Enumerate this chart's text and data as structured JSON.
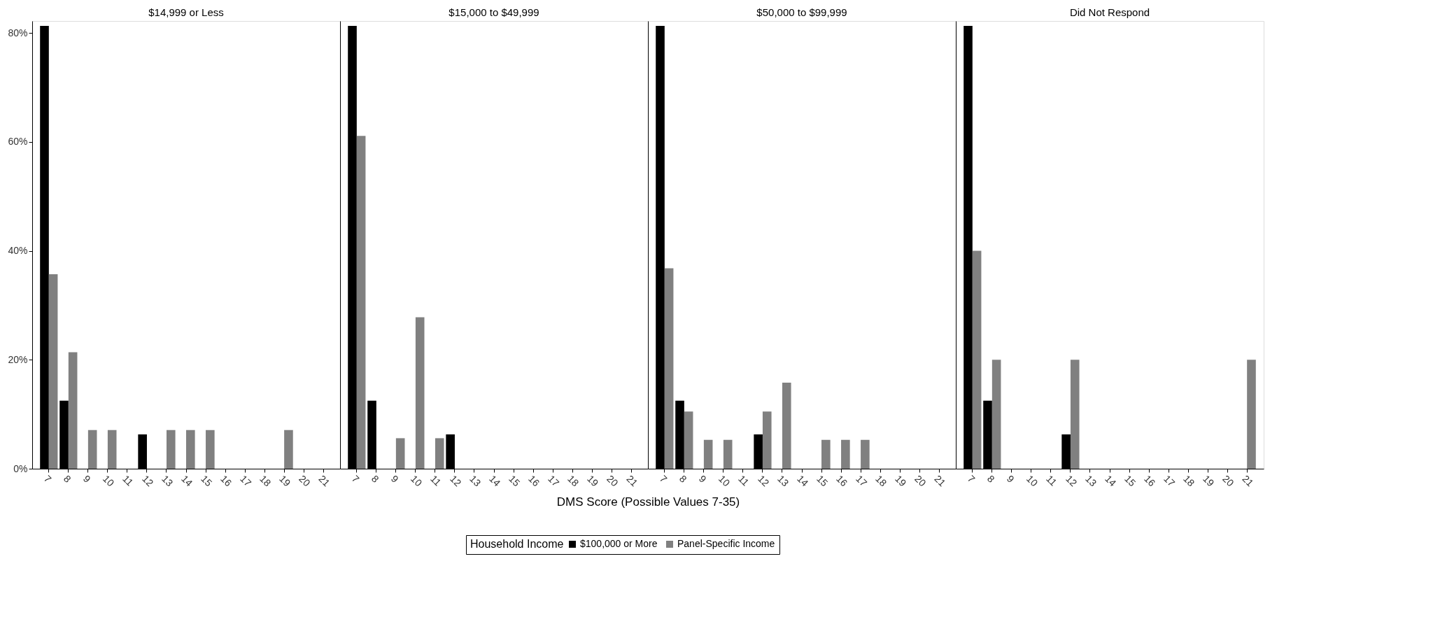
{
  "chart_data": [
    {
      "type": "bar",
      "title": "$14,999 or Less",
      "legend_title": "Household Income",
      "legend": "bottom",
      "grid": false,
      "categories": [
        "7",
        "8",
        "9",
        "10",
        "11",
        "12",
        "13",
        "14",
        "15",
        "16",
        "17",
        "18",
        "19",
        "20",
        "21"
      ],
      "ylim": [
        0,
        82.2
      ],
      "yticks": [
        {
          "value": 0,
          "label": "0%"
        },
        {
          "value": 20,
          "label": "20%"
        },
        {
          "value": 40,
          "label": "40%"
        },
        {
          "value": 60,
          "label": "60%"
        },
        {
          "value": 80,
          "label": "80%"
        }
      ],
      "series": [
        {
          "name": "$100,000 or More",
          "color": "#000000",
          "values": [
            81.3,
            12.5,
            0,
            0,
            0,
            6.3,
            0,
            0,
            0,
            0,
            0,
            0,
            0,
            0,
            0
          ]
        },
        {
          "name": "Panel-Specific Income",
          "color": "#808080",
          "values": [
            35.7,
            21.4,
            7.1,
            7.1,
            0,
            0,
            7.1,
            7.1,
            7.1,
            0,
            0,
            0,
            7.1,
            0,
            0
          ]
        }
      ]
    },
    {
      "type": "bar",
      "title": "$15,000 to $49,999",
      "xlabel": "DMS Score (Possible Values 7-35)",
      "grid": false,
      "tick_labels": "x",
      "categories": [
        "7",
        "8",
        "9",
        "10",
        "11",
        "12",
        "13",
        "14",
        "15",
        "16",
        "17",
        "18",
        "19",
        "20",
        "21"
      ],
      "ylim": [
        0,
        82.2
      ],
      "series": [
        {
          "color": "#000000",
          "values": [
            81.3,
            12.5,
            0,
            0,
            0,
            6.3,
            0,
            0,
            0,
            0,
            0,
            0,
            0,
            0,
            0
          ]
        },
        {
          "color": "#808080",
          "values": [
            61.1,
            0,
            5.6,
            27.8,
            5.6,
            0,
            0,
            0,
            0,
            0,
            0,
            0,
            0,
            0,
            0
          ]
        }
      ]
    },
    {
      "type": "bar",
      "title": "$50,000 to $99,999",
      "grid": false,
      "tick_labels": "x",
      "categories": [
        "7",
        "8",
        "9",
        "10",
        "11",
        "12",
        "13",
        "14",
        "15",
        "16",
        "17",
        "18",
        "19",
        "20",
        "21"
      ],
      "ylim": [
        0,
        82.2
      ],
      "series": [
        {
          "color": "#000000",
          "values": [
            81.3,
            12.5,
            0,
            0,
            0,
            6.3,
            0,
            0,
            0,
            0,
            0,
            0,
            0,
            0,
            0
          ]
        },
        {
          "color": "#808080",
          "values": [
            36.8,
            10.5,
            5.3,
            5.3,
            0,
            10.5,
            15.8,
            0,
            5.3,
            5.3,
            5.3,
            0,
            0,
            0,
            0
          ]
        }
      ]
    },
    {
      "type": "bar",
      "title": "Did Not Respond",
      "grid": false,
      "tick_labels": "x",
      "categories": [
        "7",
        "8",
        "9",
        "10",
        "11",
        "12",
        "13",
        "14",
        "15",
        "16",
        "17",
        "18",
        "19",
        "20",
        "21"
      ],
      "ylim": [
        0,
        82.2
      ],
      "series": [
        {
          "color": "#000000",
          "values": [
            81.3,
            12.5,
            0,
            0,
            0,
            6.3,
            0,
            0,
            0,
            0,
            0,
            0,
            0,
            0,
            0
          ]
        },
        {
          "color": "#808080",
          "values": [
            40,
            20,
            0,
            0,
            0,
            20,
            0,
            0,
            0,
            0,
            0,
            0,
            0,
            0,
            20
          ]
        }
      ]
    }
  ]
}
